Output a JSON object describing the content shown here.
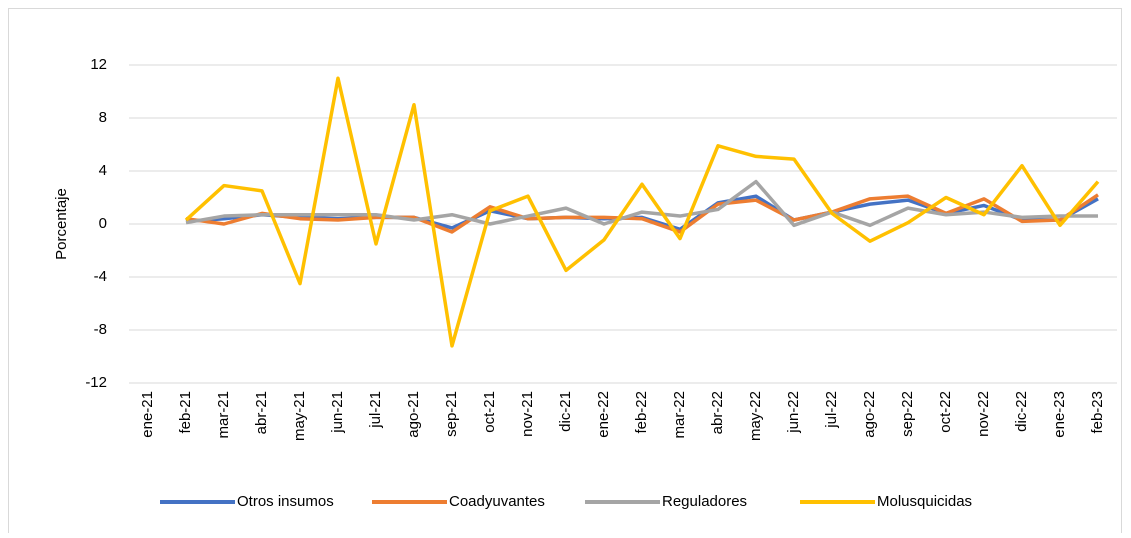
{
  "chart_data": {
    "type": "line",
    "y_label": "Porcentaje",
    "categories": [
      "ene-21",
      "feb-21",
      "mar-21",
      "abr-21",
      "may-21",
      "jun-21",
      "jul-21",
      "ago-21",
      "sep-21",
      "oct-21",
      "nov-21",
      "dic-21",
      "ene-22",
      "feb-22",
      "mar-22",
      "abr-22",
      "may-22",
      "jun-22",
      "jul-22",
      "ago-22",
      "sep-22",
      "oct-22",
      "nov-22",
      "dic-22",
      "ene-23",
      "feb-23"
    ],
    "series": [
      {
        "name": "Otros insumos",
        "color": "#4472c4",
        "values": [
          null,
          0.2,
          0.4,
          0.7,
          0.5,
          0.4,
          0.5,
          0.5,
          -0.3,
          1.0,
          0.4,
          0.5,
          0.4,
          0.5,
          -0.4,
          1.6,
          2.1,
          0.3,
          0.9,
          1.5,
          1.8,
          0.8,
          1.4,
          0.3,
          0.3,
          1.9
        ]
      },
      {
        "name": "Coadyuvantes",
        "color": "#ed7d31",
        "values": [
          null,
          0.4,
          0.0,
          0.8,
          0.4,
          0.3,
          0.5,
          0.5,
          -0.6,
          1.3,
          0.4,
          0.5,
          0.5,
          0.4,
          -0.6,
          1.5,
          1.8,
          0.3,
          0.9,
          1.9,
          2.1,
          0.8,
          1.9,
          0.2,
          0.3,
          2.2
        ]
      },
      {
        "name": "Reguladores",
        "color": "#a5a5a5",
        "values": [
          null,
          0.1,
          0.6,
          0.7,
          0.7,
          0.7,
          0.7,
          0.3,
          0.7,
          0.0,
          0.6,
          1.2,
          0.0,
          0.9,
          0.6,
          1.1,
          3.2,
          -0.1,
          0.9,
          -0.1,
          1.2,
          0.7,
          0.9,
          0.5,
          0.6,
          0.6
        ]
      },
      {
        "name": "Molusquicidas",
        "color": "#ffc000",
        "values": [
          null,
          0.3,
          2.9,
          2.5,
          -4.5,
          11,
          -1.5,
          9,
          -9.2,
          1,
          2.1,
          -3.5,
          -1.2,
          3,
          -1.1,
          5.9,
          5.1,
          4.9,
          0.8,
          -1.3,
          0.1,
          2,
          0.7,
          4.4,
          -0.1,
          3.2
        ]
      }
    ],
    "ylim": [
      -12,
      12
    ],
    "yticks": [
      -12,
      -8,
      -4,
      0,
      4,
      8,
      12
    ],
    "grid": true,
    "legend": "bottom"
  }
}
